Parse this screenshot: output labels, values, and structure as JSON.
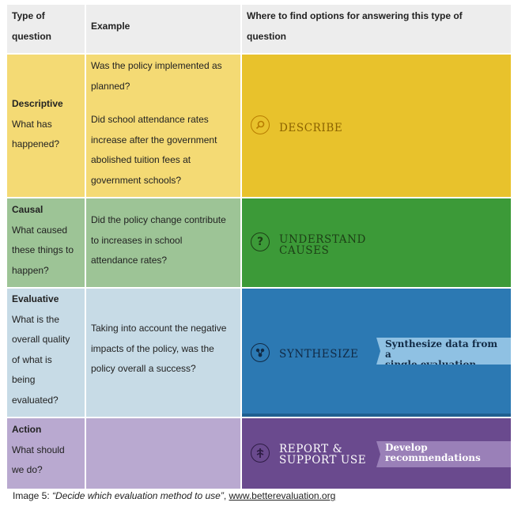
{
  "header": {
    "col1": [
      "Type of",
      "question"
    ],
    "col2": "Example",
    "col3": [
      "Where to find options for answering this type of",
      "question"
    ]
  },
  "rows": [
    {
      "type_bold": "Descriptive",
      "type_lines": [
        "What has",
        "happened?"
      ],
      "example_lines": [
        "Was the policy implemented as",
        "planned?",
        "",
        "Did school attendance rates",
        "increase after the government",
        "abolished tuition fees at",
        "government schools?"
      ],
      "banner": {
        "icon": "magnifier-icon",
        "title_lines": [
          "DESCRIBE"
        ],
        "color": "#e8c22c",
        "title_color": "#8a6200"
      }
    },
    {
      "type_bold": "Causal",
      "type_lines": [
        "What caused",
        "these things to",
        "happen?"
      ],
      "example_lines": [
        "Did the policy change contribute",
        "to increases in school",
        "attendance rates?"
      ],
      "banner": {
        "icon": "question-mark-icon",
        "title_lines": [
          "UNDERSTAND",
          "CAUSES"
        ],
        "color": "#3c9a38",
        "title_color": "#1d3f16"
      }
    },
    {
      "type_bold": "Evaluative",
      "type_lines": [
        "What is the",
        "overall quality",
        "of what is",
        "being",
        "evaluated?"
      ],
      "example_lines": [
        "Taking into account the negative",
        "impacts of the policy, was the",
        "policy overall a success?"
      ],
      "banner": {
        "icon": "synthesis-icon",
        "title_lines": [
          "SYNTHESIZE"
        ],
        "color": "#2c79b3",
        "title_color": "#112a45",
        "tag_lines": [
          "Synthesize data from a",
          "single evaluation"
        ]
      }
    },
    {
      "type_bold": "Action",
      "type_lines": [
        "What should",
        "we do?"
      ],
      "example_lines": [],
      "banner": {
        "icon": "report-icon",
        "title_lines": [
          "REPORT &",
          "SUPPORT USE"
        ],
        "color": "#6a4a8e",
        "title_color": "#ffffff",
        "tag_lines": [
          "Develop",
          "recommendations"
        ]
      }
    }
  ],
  "caption": {
    "prefix": "Image 5: ",
    "quote": "“Decide which evaluation method to use”",
    "sep": ", ",
    "link": "www.betterevaluation.org"
  }
}
